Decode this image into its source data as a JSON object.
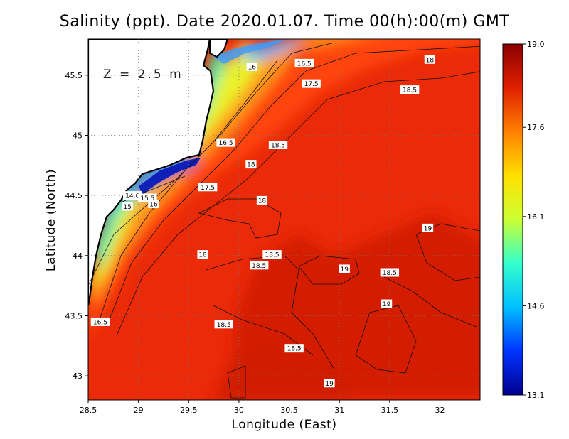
{
  "title": "Salinity (ppt). Date 2020.01.07. Time 00(h):00(m) GMT",
  "depth_label": "Z = 2.5 m",
  "x_axis": {
    "label": "Longitude (East)",
    "ticks": [
      "28.5",
      "29",
      "29.5",
      "30",
      "30.5",
      "31",
      "31.5",
      "32"
    ],
    "range": [
      28.5,
      32.4
    ]
  },
  "y_axis": {
    "label": "Latitude (North)",
    "ticks": [
      "43",
      "43.5",
      "44",
      "44.5",
      "45",
      "45.5"
    ],
    "range": [
      42.8,
      45.8
    ]
  },
  "colorbar": {
    "ticks": [
      "19.0",
      "17.6",
      "16.1",
      "14.6",
      "13.1"
    ],
    "min": 13.1,
    "max": 19.0,
    "colors": [
      "#00008f",
      "#0033ff",
      "#00bfff",
      "#33ffcc",
      "#ccff33",
      "#ffe000",
      "#ff8000",
      "#e02000",
      "#8b0000"
    ]
  },
  "contour_labels": [
    {
      "text": "16",
      "lon": 30.13,
      "lat": 45.57
    },
    {
      "text": "16.5",
      "lon": 30.65,
      "lat": 45.6
    },
    {
      "text": "18",
      "lon": 31.9,
      "lat": 45.63
    },
    {
      "text": "17.5",
      "lon": 30.72,
      "lat": 45.43
    },
    {
      "text": "18.5",
      "lon": 31.7,
      "lat": 45.38
    },
    {
      "text": "16.5",
      "lon": 29.87,
      "lat": 44.94
    },
    {
      "text": "18.5",
      "lon": 30.39,
      "lat": 44.92
    },
    {
      "text": "18",
      "lon": 30.12,
      "lat": 44.76
    },
    {
      "text": "14.6",
      "lon": 28.94,
      "lat": 44.5
    },
    {
      "text": "15.5",
      "lon": 29.09,
      "lat": 44.48
    },
    {
      "text": "16",
      "lon": 29.15,
      "lat": 44.43
    },
    {
      "text": "15",
      "lon": 28.89,
      "lat": 44.41
    },
    {
      "text": "17.5",
      "lon": 29.69,
      "lat": 44.57
    },
    {
      "text": "18",
      "lon": 30.23,
      "lat": 44.46
    },
    {
      "text": "19",
      "lon": 31.88,
      "lat": 44.23
    },
    {
      "text": "18",
      "lon": 29.64,
      "lat": 44.01
    },
    {
      "text": "18.5",
      "lon": 30.33,
      "lat": 44.01
    },
    {
      "text": "18.5",
      "lon": 30.2,
      "lat": 43.92
    },
    {
      "text": "19",
      "lon": 31.05,
      "lat": 43.89
    },
    {
      "text": "18.5",
      "lon": 31.5,
      "lat": 43.86
    },
    {
      "text": "19",
      "lon": 31.47,
      "lat": 43.6
    },
    {
      "text": "16.5",
      "lon": 28.62,
      "lat": 43.45
    },
    {
      "text": "18.5",
      "lon": 29.85,
      "lat": 43.43
    },
    {
      "text": "18.5",
      "lon": 30.55,
      "lat": 43.23
    },
    {
      "text": "19",
      "lon": 30.9,
      "lat": 42.94
    }
  ]
}
